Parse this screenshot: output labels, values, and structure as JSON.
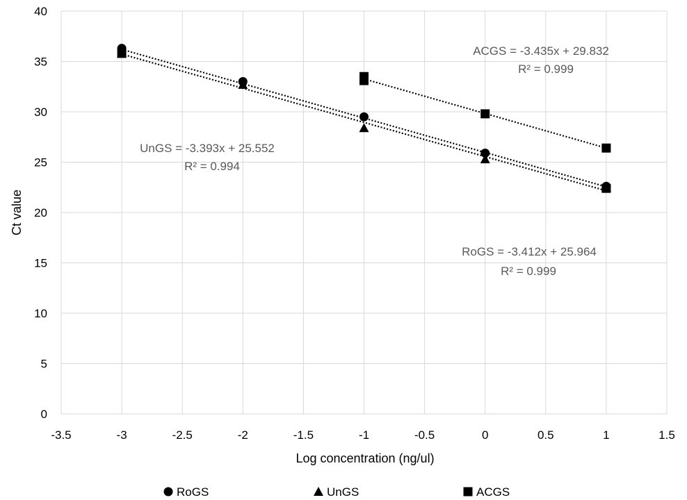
{
  "chart_data": {
    "type": "scatter",
    "title": "",
    "xlabel": "Log concentration (ng/ul)",
    "ylabel": "Ct value",
    "xlim": [
      -3.5,
      1.5
    ],
    "ylim": [
      0,
      40
    ],
    "x_ticks": [
      -3.5,
      -3,
      -2.5,
      -2,
      -1.5,
      -1,
      -0.5,
      0,
      0.5,
      1,
      1.5
    ],
    "x_tick_labels": [
      "-3.5",
      "-3",
      "-2.5",
      "-2",
      "-1.5",
      "-1",
      "-0.5",
      "0",
      "0.5",
      "1",
      "1.5"
    ],
    "y_ticks": [
      0,
      5,
      10,
      15,
      20,
      25,
      30,
      35,
      40
    ],
    "y_tick_labels": [
      "0",
      "5",
      "10",
      "15",
      "20",
      "25",
      "30",
      "35",
      "40"
    ],
    "grid": true,
    "legend_position": "bottom",
    "series": [
      {
        "name": "RoGS",
        "marker": "circle",
        "color": "#000000",
        "points": [
          [
            -3,
            36.3
          ],
          [
            -2,
            33.0
          ],
          [
            -1,
            29.5
          ],
          [
            0,
            25.9
          ],
          [
            1,
            22.6
          ]
        ],
        "trendline": {
          "slope": -3.412,
          "intercept": 25.964,
          "x_range": [
            -3,
            1
          ]
        },
        "equation": "RoGS = -3.412x + 25.964",
        "r2": "R² = 0.999"
      },
      {
        "name": "UnGS",
        "marker": "triangle",
        "color": "#000000",
        "points": [
          [
            -3,
            35.8
          ],
          [
            -2,
            32.7
          ],
          [
            -1,
            28.4
          ],
          [
            0,
            25.3
          ],
          [
            1,
            22.5
          ]
        ],
        "trendline": {
          "slope": -3.393,
          "intercept": 25.552,
          "x_range": [
            -3,
            1
          ]
        },
        "equation": "UnGS = -3.393x + 25.552",
        "r2": "R² = 0.994"
      },
      {
        "name": "ACGS",
        "marker": "square",
        "color": "#000000",
        "points": [
          [
            -3,
            35.8
          ],
          [
            -1,
            33.5
          ],
          [
            -1,
            33.1
          ],
          [
            0,
            29.8
          ],
          [
            1,
            26.4
          ],
          [
            1,
            22.4
          ]
        ],
        "trendline": {
          "slope": -3.435,
          "intercept": 29.832,
          "x_range": [
            -1,
            1
          ]
        },
        "equation": "ACGS = -3.435x + 29.832",
        "r2": "R² = 0.999"
      }
    ]
  }
}
